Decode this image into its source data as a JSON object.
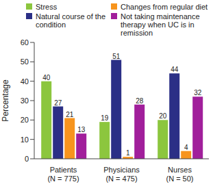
{
  "chart_data": {
    "type": "bar",
    "y_label": "Percentage",
    "categories": [
      "Patients\n(N = 775)",
      "Physicians\n(N = 475)",
      "Nurses\n(N = 50)"
    ],
    "series": [
      {
        "name": "Stress",
        "color": "#8cc63e",
        "values": [
          40,
          19,
          20
        ]
      },
      {
        "name": "Natural course of the condition",
        "color": "#2b2f86",
        "values": [
          27,
          51,
          44
        ]
      },
      {
        "name": "Changes from regular diet",
        "color": "#f7941d",
        "values": [
          21,
          1,
          4
        ]
      },
      {
        "name": "Not taking maintenance therapy when UC is in remission",
        "color": "#a11f9b",
        "values": [
          13,
          28,
          32
        ]
      }
    ],
    "ylim": [
      0,
      60
    ],
    "yticks": [
      0,
      10,
      20,
      30,
      40,
      50,
      60
    ],
    "grid": false,
    "legend": "top",
    "data_labels": true
  }
}
